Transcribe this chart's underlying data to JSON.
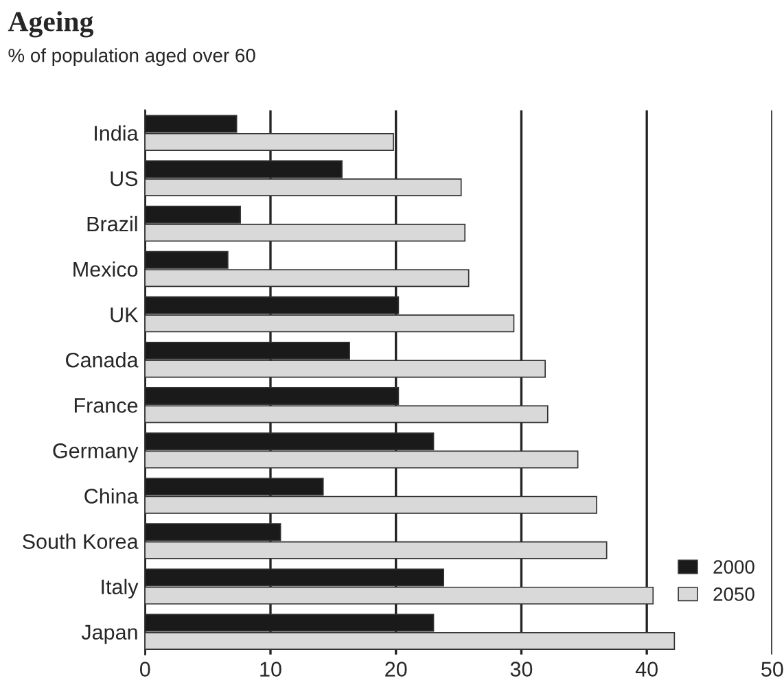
{
  "chart_data": {
    "type": "bar",
    "orientation": "horizontal",
    "title": "Ageing",
    "subtitle": "% of population aged over 60",
    "categories": [
      "India",
      "US",
      "Brazil",
      "Mexico",
      "UK",
      "Canada",
      "France",
      "Germany",
      "China",
      "South Korea",
      "Italy",
      "Japan"
    ],
    "series": [
      {
        "name": "2000",
        "color": "#1a1a1a",
        "values": [
          7.3,
          15.7,
          7.6,
          6.6,
          20.2,
          16.3,
          20.2,
          23,
          14.2,
          10.8,
          23.8,
          23
        ]
      },
      {
        "name": "2050",
        "color": "#d9d9d9",
        "values": [
          19.8,
          25.2,
          25.5,
          25.8,
          29.4,
          31.9,
          32.1,
          34.5,
          36,
          36.8,
          40.5,
          42.2
        ]
      }
    ],
    "xlim": [
      0,
      50
    ],
    "xticks": [
      0,
      10,
      20,
      30,
      40,
      50
    ],
    "grid": "x",
    "legend": "bottom right"
  }
}
